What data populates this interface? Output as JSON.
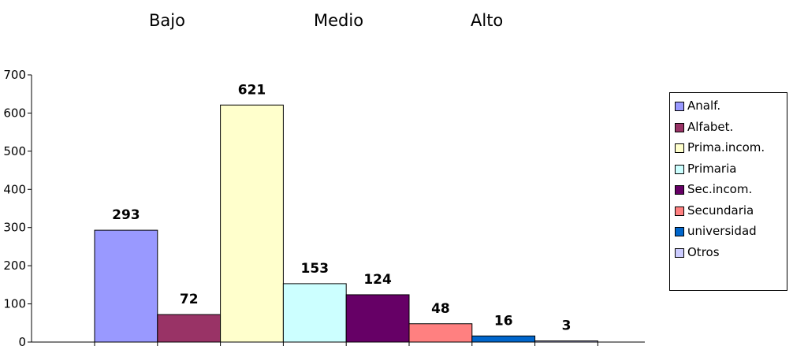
{
  "header": {
    "labels": [
      "Bajo",
      "Medio",
      "Alto"
    ]
  },
  "chart_data": {
    "type": "bar",
    "categories": [
      "Analf.",
      "Alfabet.",
      "Prima.incom.",
      "Primaria",
      "Sec.incom.",
      "Secundaria",
      "universidad",
      "Otros"
    ],
    "values": [
      293,
      72,
      621,
      153,
      124,
      48,
      16,
      3
    ],
    "colors": [
      "#9999FF",
      "#993366",
      "#FFFFCC",
      "#CCFFFF",
      "#660066",
      "#FF8080",
      "#0066CC",
      "#CCCCFF"
    ],
    "ylim": [
      0,
      700
    ],
    "yticks": [
      "0",
      "100",
      "200",
      "300",
      "400",
      "500",
      "600",
      "700"
    ],
    "data_labels": [
      "293",
      "72",
      "621",
      "153",
      "124",
      "48",
      "16",
      "3"
    ],
    "legend": {
      "position": "right",
      "entries": [
        "Analf.",
        "Alfabet.",
        "Prima.incom.",
        "Primaria",
        "Sec.incom.",
        "Secundaria",
        "universidad",
        "Otros"
      ]
    },
    "grid": false
  }
}
